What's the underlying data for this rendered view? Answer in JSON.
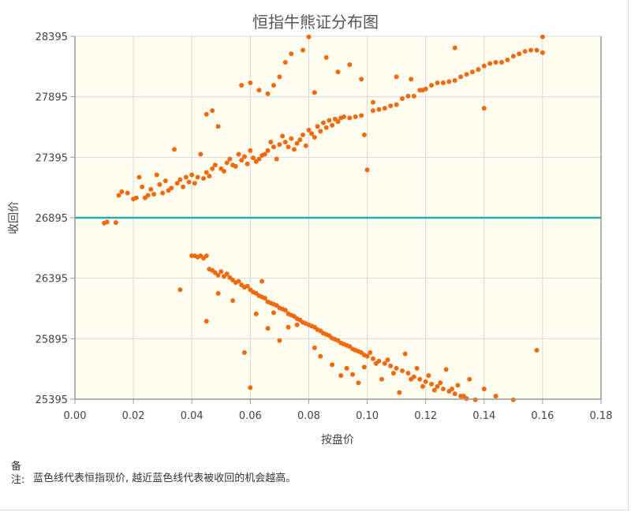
{
  "chart_data": {
    "type": "scatter",
    "title": "恒指牛熊证分布图",
    "xlabel": "按盘价",
    "ylabel": "收回价",
    "xlim": [
      0.0,
      0.18
    ],
    "ylim": [
      25395,
      28395
    ],
    "x_ticks": [
      "0.00",
      "0.02",
      "0.04",
      "0.06",
      "0.08",
      "0.10",
      "0.12",
      "0.14",
      "0.16",
      "0.18"
    ],
    "y_ticks": [
      "25395",
      "25895",
      "26395",
      "26895",
      "27395",
      "27895",
      "28395"
    ],
    "grid": true,
    "reference_line": {
      "y": 26895,
      "color": "#2aa8b8"
    },
    "point_color": "#f06a0f",
    "background_color": "#fefdf0",
    "series": [
      {
        "values": [
          [
            0.01,
            26850
          ],
          [
            0.011,
            26860
          ],
          [
            0.014,
            26855
          ],
          [
            0.015,
            27080
          ],
          [
            0.016,
            27110
          ],
          [
            0.018,
            27100
          ],
          [
            0.02,
            27050
          ],
          [
            0.021,
            27060
          ],
          [
            0.022,
            27230
          ],
          [
            0.023,
            27150
          ],
          [
            0.024,
            27060
          ],
          [
            0.025,
            27080
          ],
          [
            0.026,
            27130
          ],
          [
            0.027,
            27090
          ],
          [
            0.028,
            27250
          ],
          [
            0.029,
            27170
          ],
          [
            0.03,
            27100
          ],
          [
            0.031,
            27200
          ],
          [
            0.032,
            27120
          ],
          [
            0.033,
            27140
          ],
          [
            0.034,
            27460
          ],
          [
            0.035,
            27180
          ],
          [
            0.036,
            27210
          ],
          [
            0.037,
            27150
          ],
          [
            0.038,
            27230
          ],
          [
            0.039,
            27190
          ],
          [
            0.04,
            27250
          ],
          [
            0.041,
            27180
          ],
          [
            0.042,
            27230
          ],
          [
            0.043,
            27420
          ],
          [
            0.044,
            27220
          ],
          [
            0.045,
            27270
          ],
          [
            0.046,
            27240
          ],
          [
            0.047,
            27300
          ],
          [
            0.048,
            27330
          ],
          [
            0.049,
            27650
          ],
          [
            0.05,
            27300
          ],
          [
            0.051,
            27280
          ],
          [
            0.052,
            27350
          ],
          [
            0.053,
            27380
          ],
          [
            0.054,
            27330
          ],
          [
            0.055,
            27320
          ],
          [
            0.056,
            27420
          ],
          [
            0.057,
            27370
          ],
          [
            0.058,
            27400
          ],
          [
            0.059,
            27340
          ],
          [
            0.06,
            27450
          ],
          [
            0.061,
            27390
          ],
          [
            0.062,
            27360
          ],
          [
            0.063,
            27380
          ],
          [
            0.064,
            27410
          ],
          [
            0.065,
            27420
          ],
          [
            0.066,
            27450
          ],
          [
            0.067,
            27520
          ],
          [
            0.068,
            27480
          ],
          [
            0.069,
            27380
          ],
          [
            0.07,
            27500
          ],
          [
            0.071,
            27570
          ],
          [
            0.072,
            27520
          ],
          [
            0.073,
            27480
          ],
          [
            0.074,
            27550
          ],
          [
            0.075,
            27460
          ],
          [
            0.076,
            27510
          ],
          [
            0.077,
            27540
          ],
          [
            0.078,
            27580
          ],
          [
            0.079,
            27490
          ],
          [
            0.08,
            27620
          ],
          [
            0.081,
            27590
          ],
          [
            0.082,
            27560
          ],
          [
            0.083,
            27650
          ],
          [
            0.084,
            27610
          ],
          [
            0.085,
            27680
          ],
          [
            0.086,
            27640
          ],
          [
            0.087,
            27700
          ],
          [
            0.088,
            27660
          ],
          [
            0.089,
            27710
          ],
          [
            0.09,
            27690
          ],
          [
            0.091,
            27720
          ],
          [
            0.092,
            27730
          ],
          [
            0.094,
            27720
          ],
          [
            0.096,
            27730
          ],
          [
            0.098,
            27740
          ],
          [
            0.099,
            27580
          ],
          [
            0.1,
            27290
          ],
          [
            0.102,
            27780
          ],
          [
            0.104,
            27790
          ],
          [
            0.106,
            27800
          ],
          [
            0.108,
            27820
          ],
          [
            0.11,
            27830
          ],
          [
            0.112,
            27880
          ],
          [
            0.114,
            27900
          ],
          [
            0.116,
            27900
          ],
          [
            0.118,
            27950
          ],
          [
            0.12,
            27960
          ],
          [
            0.122,
            27990
          ],
          [
            0.124,
            28010
          ],
          [
            0.126,
            28010
          ],
          [
            0.128,
            28020
          ],
          [
            0.13,
            28030
          ],
          [
            0.132,
            28060
          ],
          [
            0.134,
            28080
          ],
          [
            0.136,
            28100
          ],
          [
            0.138,
            28120
          ],
          [
            0.14,
            28150
          ],
          [
            0.142,
            28170
          ],
          [
            0.144,
            28180
          ],
          [
            0.146,
            28180
          ],
          [
            0.148,
            28200
          ],
          [
            0.15,
            28230
          ],
          [
            0.152,
            28250
          ],
          [
            0.154,
            28270
          ],
          [
            0.156,
            28280
          ],
          [
            0.158,
            28280
          ],
          [
            0.16,
            28260
          ],
          [
            0.16,
            28390
          ],
          [
            0.045,
            27750
          ],
          [
            0.047,
            27780
          ],
          [
            0.057,
            27990
          ],
          [
            0.06,
            28010
          ],
          [
            0.063,
            27950
          ],
          [
            0.066,
            27920
          ],
          [
            0.068,
            27990
          ],
          [
            0.07,
            28060
          ],
          [
            0.072,
            28180
          ],
          [
            0.074,
            28250
          ],
          [
            0.078,
            28280
          ],
          [
            0.08,
            28390
          ],
          [
            0.082,
            27930
          ],
          [
            0.086,
            28220
          ],
          [
            0.09,
            28100
          ],
          [
            0.094,
            28160
          ],
          [
            0.098,
            28040
          ],
          [
            0.102,
            27850
          ],
          [
            0.11,
            28060
          ],
          [
            0.115,
            28040
          ],
          [
            0.119,
            27950
          ],
          [
            0.13,
            28300
          ],
          [
            0.14,
            27800
          ],
          [
            0.04,
            26580
          ],
          [
            0.041,
            26580
          ],
          [
            0.042,
            26570
          ],
          [
            0.043,
            26580
          ],
          [
            0.044,
            26560
          ],
          [
            0.045,
            26580
          ],
          [
            0.046,
            26470
          ],
          [
            0.047,
            26460
          ],
          [
            0.048,
            26440
          ],
          [
            0.049,
            26420
          ],
          [
            0.05,
            26450
          ],
          [
            0.051,
            26410
          ],
          [
            0.052,
            26430
          ],
          [
            0.053,
            26400
          ],
          [
            0.054,
            26380
          ],
          [
            0.055,
            26360
          ],
          [
            0.056,
            26370
          ],
          [
            0.057,
            26340
          ],
          [
            0.058,
            26320
          ],
          [
            0.059,
            26330
          ],
          [
            0.06,
            26300
          ],
          [
            0.061,
            26280
          ],
          [
            0.062,
            26270
          ],
          [
            0.063,
            26250
          ],
          [
            0.064,
            26240
          ],
          [
            0.065,
            26230
          ],
          [
            0.066,
            26200
          ],
          [
            0.067,
            26190
          ],
          [
            0.068,
            26180
          ],
          [
            0.069,
            26170
          ],
          [
            0.07,
            26150
          ],
          [
            0.071,
            26140
          ],
          [
            0.072,
            26130
          ],
          [
            0.073,
            26100
          ],
          [
            0.074,
            26090
          ],
          [
            0.075,
            26080
          ],
          [
            0.076,
            26060
          ],
          [
            0.077,
            26050
          ],
          [
            0.078,
            26030
          ],
          [
            0.079,
            26020
          ],
          [
            0.08,
            26010
          ],
          [
            0.081,
            26000
          ],
          [
            0.082,
            25990
          ],
          [
            0.083,
            25970
          ],
          [
            0.084,
            25960
          ],
          [
            0.085,
            25940
          ],
          [
            0.086,
            25930
          ],
          [
            0.087,
            25920
          ],
          [
            0.088,
            25900
          ],
          [
            0.089,
            25890
          ],
          [
            0.09,
            25880
          ],
          [
            0.091,
            25860
          ],
          [
            0.092,
            25850
          ],
          [
            0.093,
            25840
          ],
          [
            0.094,
            25830
          ],
          [
            0.095,
            25810
          ],
          [
            0.096,
            25800
          ],
          [
            0.097,
            25790
          ],
          [
            0.098,
            25780
          ],
          [
            0.099,
            25760
          ],
          [
            0.1,
            25750
          ],
          [
            0.102,
            25730
          ],
          [
            0.104,
            25710
          ],
          [
            0.106,
            25690
          ],
          [
            0.108,
            25670
          ],
          [
            0.11,
            25650
          ],
          [
            0.112,
            25630
          ],
          [
            0.114,
            25610
          ],
          [
            0.116,
            25580
          ],
          [
            0.118,
            25560
          ],
          [
            0.12,
            25540
          ],
          [
            0.122,
            25520
          ],
          [
            0.124,
            25500
          ],
          [
            0.126,
            25480
          ],
          [
            0.128,
            25460
          ],
          [
            0.13,
            25440
          ],
          [
            0.132,
            25420
          ],
          [
            0.134,
            25400
          ],
          [
            0.036,
            26300
          ],
          [
            0.045,
            26040
          ],
          [
            0.049,
            26270
          ],
          [
            0.054,
            26210
          ],
          [
            0.058,
            25780
          ],
          [
            0.06,
            25490
          ],
          [
            0.062,
            26100
          ],
          [
            0.064,
            26370
          ],
          [
            0.066,
            25980
          ],
          [
            0.068,
            26110
          ],
          [
            0.07,
            25880
          ],
          [
            0.073,
            25990
          ],
          [
            0.076,
            26010
          ],
          [
            0.082,
            25820
          ],
          [
            0.084,
            25750
          ],
          [
            0.088,
            25680
          ],
          [
            0.091,
            25590
          ],
          [
            0.093,
            25650
          ],
          [
            0.095,
            25600
          ],
          [
            0.097,
            25530
          ],
          [
            0.099,
            25660
          ],
          [
            0.101,
            25780
          ],
          [
            0.103,
            25690
          ],
          [
            0.105,
            25560
          ],
          [
            0.107,
            25720
          ],
          [
            0.109,
            25610
          ],
          [
            0.111,
            25450
          ],
          [
            0.113,
            25770
          ],
          [
            0.115,
            25560
          ],
          [
            0.117,
            25650
          ],
          [
            0.119,
            25500
          ],
          [
            0.121,
            25590
          ],
          [
            0.123,
            25470
          ],
          [
            0.125,
            25530
          ],
          [
            0.127,
            25640
          ],
          [
            0.129,
            25480
          ],
          [
            0.131,
            25510
          ],
          [
            0.133,
            25420
          ],
          [
            0.135,
            25560
          ],
          [
            0.137,
            25390
          ],
          [
            0.14,
            25480
          ],
          [
            0.144,
            25420
          ],
          [
            0.15,
            25390
          ],
          [
            0.158,
            25800
          ]
        ]
      }
    ]
  },
  "note": {
    "label": "备注:",
    "text": "蓝色线代表恒指现价, 越近蓝色线代表被收回的机会越高。"
  }
}
